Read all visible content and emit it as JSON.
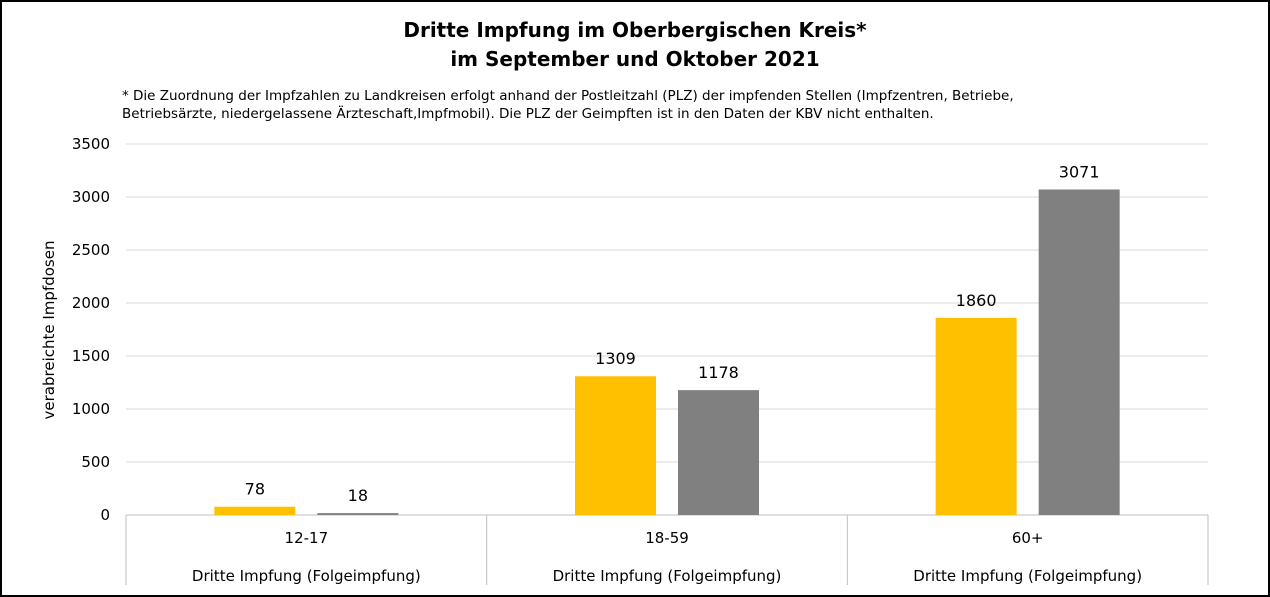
{
  "title_line1": "Dritte Impfung im Oberbergischen Kreis*",
  "title_line2": "im September und Oktober 2021",
  "footnote_line1": "* Die Zuordnung der Impfzahlen zu Landkreisen erfolgt anhand der Postleitzahl (PLZ) der impfenden Stellen (Impfzentren, Betriebe,",
  "footnote_line2": "Betriebsärzte, niedergelassene Ärzteschaft,Impfmobil). Die PLZ der Geimpften ist in den Daten der KBV nicht enthalten.",
  "chart_data": {
    "type": "bar",
    "title": "Dritte Impfung im Oberbergischen Kreis* im September und Oktober 2021",
    "ylabel": "verabreichte Impfdosen",
    "xlabel": "",
    "ylim": [
      0,
      3500
    ],
    "yticks": [
      "0",
      "500",
      "1000",
      "1500",
      "2000",
      "2500",
      "3000",
      "3500"
    ],
    "categories": [
      "12-17",
      "18-59",
      "60+"
    ],
    "group_label": "Dritte Impfung (Folgeimpfung)",
    "grid": true,
    "legend": "none",
    "series": [
      {
        "values": [
          78,
          1309,
          1860
        ],
        "color": "#ffc000"
      },
      {
        "values": [
          18,
          1178,
          3071
        ],
        "color": "#808080"
      }
    ]
  }
}
